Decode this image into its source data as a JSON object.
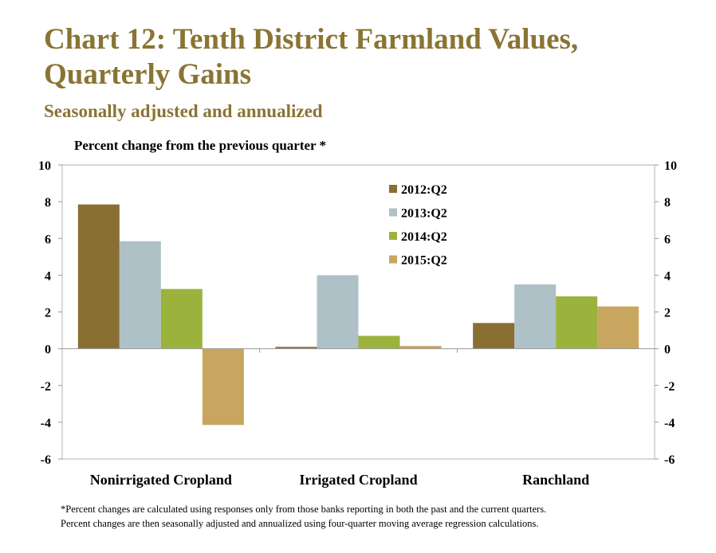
{
  "header": {
    "title": "Chart 12: Tenth District Farmland Values, Quarterly Gains",
    "subtitle": "Seasonally adjusted and annualized"
  },
  "chart_data": {
    "type": "bar",
    "ylabel": "Percent change from the previous quarter *",
    "categories": [
      "Nonirrigated Cropland",
      "Irrigated Cropland",
      "Ranchland"
    ],
    "series": [
      {
        "name": "2012:Q2",
        "color": "#8a6f33",
        "values": [
          7.85,
          0.1,
          1.4
        ]
      },
      {
        "name": "2013:Q2",
        "color": "#aec1c6",
        "values": [
          5.85,
          4.0,
          3.5
        ]
      },
      {
        "name": "2014:Q2",
        "color": "#9bb33c",
        "values": [
          3.25,
          0.7,
          2.85
        ]
      },
      {
        "name": "2015:Q2",
        "color": "#c8a65f",
        "values": [
          -4.15,
          0.15,
          2.3
        ]
      }
    ],
    "ylim": [
      -6,
      10
    ],
    "yticks": [
      -6,
      -4,
      -2,
      0,
      2,
      4,
      6,
      8,
      10
    ],
    "secondary_axis": true,
    "grid": false,
    "legend": "top-center"
  },
  "footnote": {
    "line1": "*Percent changes are calculated using responses only from those banks reporting in both the past and the current quarters.",
    "line2": "Percent changes are then seasonally adjusted and annualized using four-quarter moving average regression calculations."
  }
}
